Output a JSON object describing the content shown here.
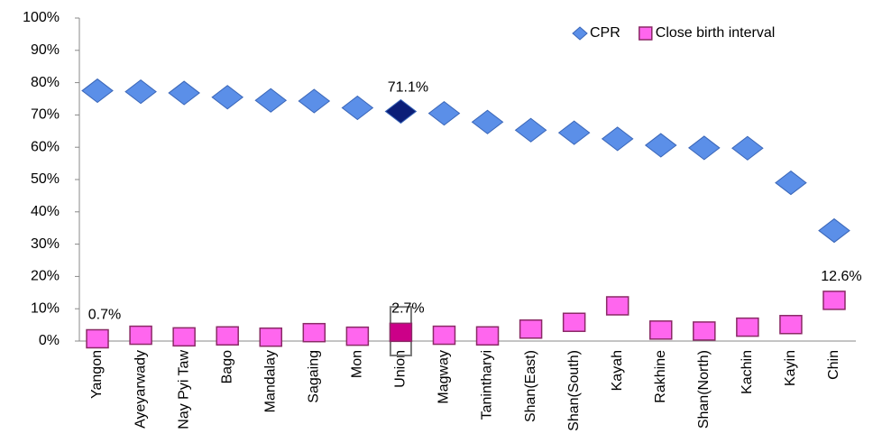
{
  "chart_data": {
    "type": "scatter",
    "categories": [
      "Yangon",
      "Ayeyarwady",
      "Nay Pyi Taw",
      "Bago",
      "Mandalay",
      "Sagaing",
      "Mon",
      "Union",
      "Magway",
      "Tanintharyi",
      "Shan(East)",
      "Shan(South)",
      "Kayah",
      "Rakhine",
      "Shan(North)",
      "Kachin",
      "Kayin",
      "Chin"
    ],
    "highlight_category": "Union",
    "series": [
      {
        "name": "CPR",
        "marker": "diamond",
        "color": "#5b8fe8",
        "highlight_color": "#0b1e78",
        "values": [
          77.5,
          77.2,
          76.8,
          75.5,
          74.5,
          74.3,
          72.2,
          71.1,
          70.5,
          67.8,
          65.3,
          64.5,
          62.6,
          60.6,
          59.8,
          59.7,
          49.0,
          34.2
        ],
        "value_labels": [
          null,
          null,
          null,
          null,
          null,
          null,
          null,
          "71.1%",
          null,
          null,
          null,
          null,
          null,
          null,
          null,
          null,
          null,
          null
        ]
      },
      {
        "name": "Close birth interval",
        "marker": "square",
        "color": "#ff66ee",
        "highlight_color": "#cc0088",
        "values": [
          0.7,
          1.8,
          1.3,
          1.6,
          1.2,
          2.6,
          1.5,
          2.7,
          1.8,
          1.6,
          3.7,
          5.8,
          10.9,
          3.4,
          3.1,
          4.3,
          5.1,
          12.6
        ],
        "value_labels": [
          "0.7%",
          null,
          null,
          null,
          null,
          null,
          null,
          "2.7%",
          null,
          null,
          null,
          null,
          null,
          null,
          null,
          null,
          null,
          "12.6%"
        ]
      }
    ],
    "ylim": [
      0,
      100
    ],
    "yticks": [
      {
        "value": 0,
        "label": "0%"
      },
      {
        "value": 10,
        "label": "10%"
      },
      {
        "value": 20,
        "label": "20%"
      },
      {
        "value": 30,
        "label": "30%"
      },
      {
        "value": 40,
        "label": "40%"
      },
      {
        "value": 50,
        "label": "50%"
      },
      {
        "value": 60,
        "label": "60%"
      },
      {
        "value": 70,
        "label": "70%"
      },
      {
        "value": 80,
        "label": "80%"
      },
      {
        "value": 90,
        "label": "90%"
      },
      {
        "value": 100,
        "label": "100%"
      }
    ],
    "grid": false,
    "legend": "top-right"
  }
}
